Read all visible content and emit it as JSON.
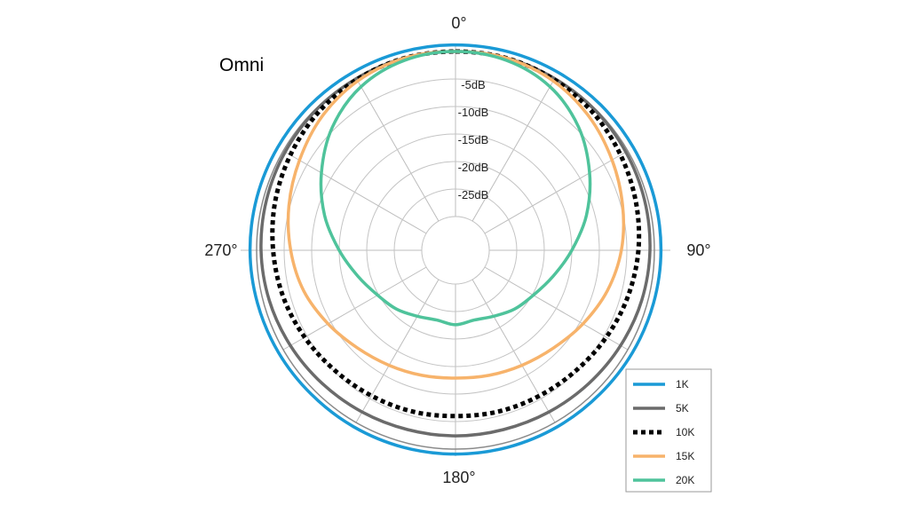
{
  "chart_data": {
    "type": "polar",
    "title": "Omni",
    "r_ticks": [
      "-5dB",
      "-10dB",
      "-15dB",
      "-20dB",
      "-25dB"
    ],
    "r_tick_values": [
      -5,
      -10,
      -15,
      -20,
      -25
    ],
    "r_range": [
      -30,
      0
    ],
    "angle_labels": [
      "0°",
      "90°",
      "180°",
      "270°"
    ],
    "angle_label_values": [
      0,
      90,
      180,
      270
    ],
    "angle_grid_step": 30,
    "grid": true,
    "legend_position": "bottom-right",
    "angles_deg": [
      0,
      15,
      30,
      45,
      60,
      75,
      90,
      105,
      120,
      135,
      150,
      165,
      180,
      195,
      210,
      225,
      240,
      255,
      270,
      285,
      300,
      315,
      330,
      345
    ],
    "series": [
      {
        "name": "1K",
        "color": "#1a9ad6",
        "style": "solid",
        "values": [
          1.2,
          1.2,
          1.2,
          1.2,
          1.2,
          1.2,
          1.2,
          1.1,
          1.0,
          0.9,
          0.9,
          0.9,
          0.9,
          0.9,
          0.9,
          0.9,
          1.0,
          1.1,
          1.2,
          1.2,
          1.2,
          1.2,
          1.2,
          1.2
        ]
      },
      {
        "name": "5K",
        "color": "#6b6b6b",
        "style": "solid",
        "values": [
          0,
          0,
          -0.1,
          -0.2,
          -0.4,
          -0.6,
          -0.8,
          -1.1,
          -1.5,
          -1.9,
          -2.2,
          -2.4,
          -2.4,
          -2.4,
          -2.2,
          -1.9,
          -1.5,
          -1.1,
          -0.8,
          -0.6,
          -0.4,
          -0.2,
          -0.1,
          0
        ]
      },
      {
        "name": "10K",
        "color": "#000000",
        "style": "dotted",
        "values": [
          0,
          0,
          -0.3,
          -0.8,
          -1.5,
          -2.2,
          -2.9,
          -3.7,
          -4.5,
          -5.2,
          -5.6,
          -5.8,
          -6.0,
          -5.8,
          -5.6,
          -5.2,
          -4.5,
          -3.7,
          -3.0,
          -2.2,
          -1.5,
          -0.8,
          -0.3,
          0
        ]
      },
      {
        "name": "15K",
        "color": "#f7b36b",
        "style": "solid",
        "values": [
          0,
          0,
          -0.6,
          -1.8,
          -3.3,
          -4.7,
          -6.0,
          -7.6,
          -9.4,
          -11.0,
          -12.0,
          -12.6,
          -12.9,
          -12.6,
          -12.0,
          -11.0,
          -9.4,
          -7.6,
          -6.2,
          -4.8,
          -3.4,
          -1.8,
          -0.6,
          0
        ]
      },
      {
        "name": "20K",
        "color": "#4fc39b",
        "style": "solid",
        "values": [
          0,
          -0.4,
          -1.8,
          -4.5,
          -8.0,
          -11.5,
          -15.0,
          -17.8,
          -19.8,
          -21.0,
          -22.3,
          -23.0,
          -22.6,
          -23.0,
          -22.3,
          -21.0,
          -19.8,
          -17.8,
          -15.0,
          -11.5,
          -8.0,
          -4.5,
          -1.8,
          -0.4
        ]
      }
    ]
  }
}
